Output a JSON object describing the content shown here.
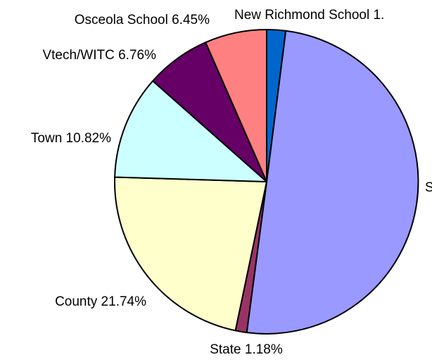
{
  "chart_data": {
    "type": "pie",
    "title": "",
    "slices": [
      {
        "label": "New Richmond School 1.",
        "value": 1.97,
        "color": "#0066CC"
      },
      {
        "label": "S",
        "value": 49.08,
        "color": "#9999FF"
      },
      {
        "label": "State 1.18%",
        "value": 1.18,
        "color": "#993366"
      },
      {
        "label": "County 21.74%",
        "value": 21.74,
        "color": "#FFFFCC"
      },
      {
        "label": "Town 10.82%",
        "value": 10.82,
        "color": "#CCFFFF"
      },
      {
        "label": "Vtech/WITC 6.76%",
        "value": 6.76,
        "color": "#660066"
      },
      {
        "label": "Osceola School 6.45%",
        "value": 6.45,
        "color": "#FF8080"
      }
    ],
    "start": "12 o'clock",
    "direction": "clockwise",
    "outline_color": "#000000"
  }
}
